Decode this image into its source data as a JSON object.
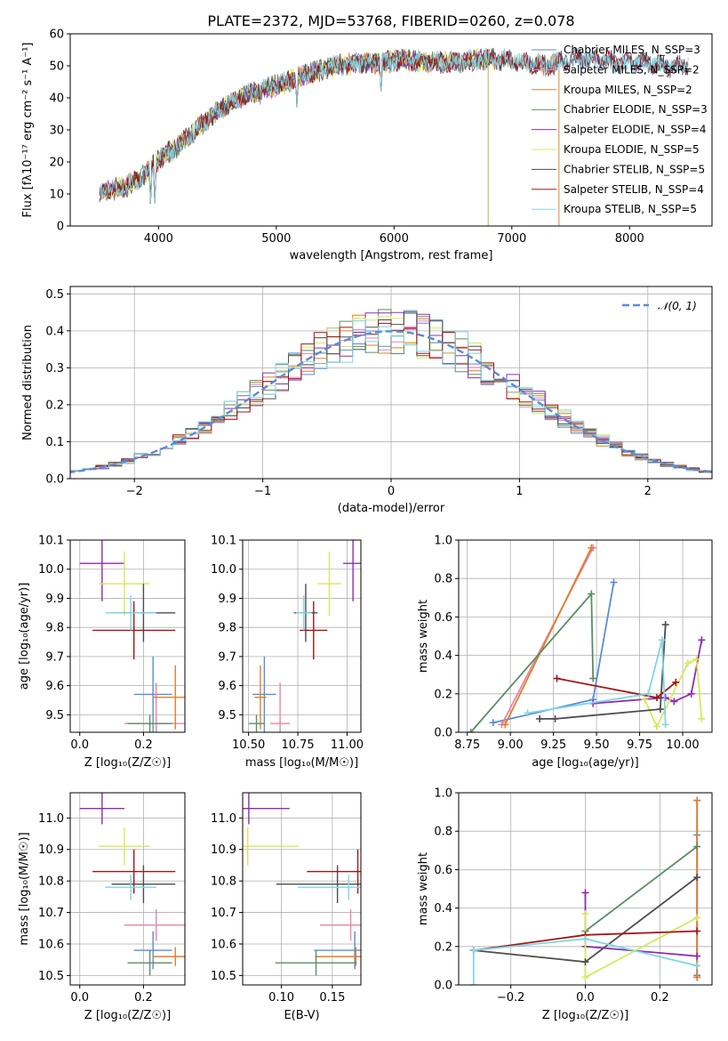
{
  "colors": {
    "Chabrier MILES": "#5b8bd9",
    "Salpeter MILES": "#e885a8",
    "Kroupa MILES": "#df7f2a",
    "Chabrier ELODIE": "#5a8e63",
    "Salpeter ELODIE": "#8f2cb1",
    "Kroupa ELODIE": "#d6e85c",
    "Chabrier STELIB": "#4d4d4d",
    "Salpeter STELIB": "#a51414",
    "Kroupa STELIB": "#7fd6e6"
  },
  "chart_data": [
    {
      "id": "spectrum",
      "type": "line",
      "title": "PLATE=2372, MJD=53768, FIBERID=0260, z=0.078",
      "xlabel": "wavelength [Angstrom, rest frame]",
      "ylabel": "Flux [fλ10⁻¹⁷ erg cm⁻² s⁻¹ A⁻¹]",
      "xlim": [
        3250,
        8700
      ],
      "ylim": [
        0,
        60
      ],
      "xticks": [
        4000,
        5000,
        6000,
        7000,
        8000
      ],
      "yticks": [
        0,
        10,
        20,
        30,
        40,
        50,
        60
      ],
      "grid": false,
      "legend_position": "right",
      "continuum": {
        "x": [
          3500,
          3700,
          3850,
          3950,
          4050,
          4200,
          4350,
          4500,
          4700,
          4900,
          5100,
          5300,
          5500,
          5700,
          5900,
          6100,
          6300,
          6500,
          6700,
          6900,
          7100,
          7300,
          7500,
          7700,
          7900,
          8100,
          8300,
          8500
        ],
        "y": [
          11,
          12,
          15,
          19,
          22,
          26,
          31,
          36,
          40,
          43,
          45,
          48,
          50,
          51,
          51,
          52,
          51,
          51,
          52,
          52,
          51,
          50,
          52,
          52,
          51,
          51,
          50,
          50
        ]
      },
      "absorption_features": [
        {
          "x": 3933,
          "y": 6
        },
        {
          "x": 3968,
          "y": 7
        },
        {
          "x": 4300,
          "y": 24
        },
        {
          "x": 4861,
          "y": 37
        },
        {
          "x": 5175,
          "y": 36
        },
        {
          "x": 5890,
          "y": 40
        },
        {
          "x": 6563,
          "y": 45
        }
      ],
      "series": [
        {
          "name": "Chabrier MILES",
          "nssp": 3,
          "xmax": 8500
        },
        {
          "name": "Salpeter MILES",
          "nssp": 2,
          "xmax": 7400
        },
        {
          "name": "Kroupa MILES",
          "nssp": 2,
          "xmax": 7400
        },
        {
          "name": "Chabrier ELODIE",
          "nssp": 3,
          "xmax": 6800
        },
        {
          "name": "Salpeter ELODIE",
          "nssp": 4,
          "xmax": 6800
        },
        {
          "name": "Kroupa ELODIE",
          "nssp": 5,
          "xmax": 6800
        },
        {
          "name": "Chabrier STELIB",
          "nssp": 5,
          "xmax": 8500
        },
        {
          "name": "Salpeter STELIB",
          "nssp": 4,
          "xmax": 8500
        },
        {
          "name": "Kroupa STELIB",
          "nssp": 5,
          "xmax": 8500
        }
      ],
      "legend_entries": [
        "Chabrier MILES, N_SSP=3",
        "Salpeter MILES, N_SSP=2",
        "Kroupa MILES, N_SSP=2",
        "Chabrier ELODIE, N_SSP=3",
        "Salpeter ELODIE, N_SSP=4",
        "Kroupa ELODIE, N_SSP=5",
        "Chabrier STELIB, N_SSP=5",
        "Salpeter STELIB, N_SSP=4",
        "Kroupa STELIB, N_SSP=5"
      ]
    },
    {
      "id": "residuals",
      "type": "bar",
      "xlabel": "(data-model)/error",
      "ylabel": "Normed distribution",
      "xlim": [
        -2.5,
        2.5
      ],
      "ylim": [
        0,
        0.52
      ],
      "xticks": [
        -2,
        -1,
        0,
        1,
        2
      ],
      "yticks": [
        0.0,
        0.1,
        0.2,
        0.3,
        0.4,
        0.5
      ],
      "grid": true,
      "legend_position": "upper right",
      "reference_label": "𝒩(0, 1)",
      "reference_color": "#5b8bd9",
      "bin_width": 0.1,
      "histogram_approximates": "N(0,1) per model"
    },
    {
      "id": "age_vs_Z",
      "type": "scatter",
      "xlabel": "Z [log₁₀(Z/Z☉)]",
      "ylabel": "age  [log₁₀(age/yr)]",
      "xlim": [
        -0.03,
        0.33
      ],
      "ylim": [
        9.44,
        10.1
      ],
      "xticks": [
        0.0,
        0.2
      ],
      "yticks": [
        9.5,
        9.6,
        9.7,
        9.8,
        9.9,
        10.0,
        10.1
      ],
      "grid": true
    },
    {
      "id": "age_vs_mass",
      "type": "scatter",
      "xlabel": "mass [log₁₀(M/M☉)]",
      "xlim": [
        10.47,
        11.07
      ],
      "ylim": [
        9.44,
        10.1
      ],
      "xticks": [
        10.5,
        10.75,
        11.0
      ],
      "yticks": [
        9.5,
        9.6,
        9.7,
        9.8,
        9.9,
        10.0,
        10.1
      ],
      "grid": true
    },
    {
      "id": "mass_weight_vs_age",
      "type": "line",
      "xlabel": "age  [log₁₀(age/yr)]",
      "ylabel": "mass weight",
      "xlim": [
        8.7,
        10.17
      ],
      "ylim": [
        0,
        1.0
      ],
      "xticks": [
        8.75,
        9.0,
        9.25,
        9.5,
        9.75,
        10.0
      ],
      "yticks": [
        0.0,
        0.2,
        0.4,
        0.6,
        0.8,
        1.0
      ],
      "grid": true,
      "series": [
        {
          "name": "Chabrier MILES",
          "x": [
            8.9,
            9.48,
            9.6
          ],
          "y": [
            0.05,
            0.17,
            0.78
          ]
        },
        {
          "name": "Salpeter MILES",
          "x": [
            8.95,
            9.48
          ],
          "y": [
            0.04,
            0.96
          ]
        },
        {
          "name": "Kroupa MILES",
          "x": [
            8.97,
            9.47
          ],
          "y": [
            0.04,
            0.96
          ]
        },
        {
          "name": "Chabrier ELODIE",
          "x": [
            8.77,
            9.47,
            9.48
          ],
          "y": [
            0.0,
            0.72,
            0.28
          ]
        },
        {
          "name": "Salpeter ELODIE",
          "x": [
            9.48,
            9.9,
            9.95,
            10.05,
            10.11
          ],
          "y": [
            0.15,
            0.18,
            0.16,
            0.2,
            0.48
          ]
        },
        {
          "name": "Kroupa ELODIE",
          "x": [
            9.78,
            9.85,
            10.03,
            10.08,
            10.11
          ],
          "y": [
            0.17,
            0.03,
            0.36,
            0.38,
            0.07
          ]
        },
        {
          "name": "Chabrier STELIB",
          "x": [
            9.17,
            9.26,
            9.87,
            9.9
          ],
          "y": [
            0.07,
            0.07,
            0.12,
            0.56
          ]
        },
        {
          "name": "Salpeter STELIB",
          "x": [
            9.27,
            9.85,
            9.96
          ],
          "y": [
            0.28,
            0.18,
            0.26
          ]
        },
        {
          "name": "Kroupa STELIB",
          "x": [
            9.1,
            9.8,
            9.88,
            9.9
          ],
          "y": [
            0.1,
            0.2,
            0.48,
            0.04
          ]
        }
      ]
    },
    {
      "id": "mass_vs_Z",
      "type": "scatter",
      "xlabel": "Z [log₁₀(Z/Z☉)]",
      "ylabel": "mass [log₁₀(M/M☉)]",
      "xlim": [
        -0.03,
        0.33
      ],
      "ylim": [
        10.47,
        11.08
      ],
      "xticks": [
        0.0,
        0.2
      ],
      "yticks": [
        10.5,
        10.6,
        10.7,
        10.8,
        10.9,
        11.0
      ],
      "grid": true
    },
    {
      "id": "mass_vs_EBV",
      "type": "scatter",
      "xlabel": "E(B-V)",
      "xlim": [
        0.062,
        0.178
      ],
      "ylim": [
        10.47,
        11.08
      ],
      "xticks": [
        0.1,
        0.15
      ],
      "yticks": [
        10.5,
        10.6,
        10.7,
        10.8,
        10.9,
        11.0
      ],
      "grid": true
    },
    {
      "id": "mass_weight_vs_Z",
      "type": "line",
      "xlabel": "Z [log₁₀(Z/Z☉)]",
      "ylabel": "mass weight",
      "xlim": [
        -0.34,
        0.34
      ],
      "ylim": [
        0,
        1.0
      ],
      "xticks": [
        -0.2,
        0.0,
        0.2
      ],
      "yticks": [
        0.0,
        0.2,
        0.4,
        0.6,
        0.8,
        1.0
      ],
      "grid": true,
      "series": [
        {
          "name": "Chabrier MILES",
          "x": [
            0.3,
            0.3
          ],
          "y": [
            0.78,
            0.05
          ]
        },
        {
          "name": "Salpeter MILES",
          "x": [
            0.3,
            0.3
          ],
          "y": [
            0.96,
            0.04
          ]
        },
        {
          "name": "Kroupa MILES",
          "x": [
            0.3,
            0.3
          ],
          "y": [
            0.96,
            0.04
          ]
        },
        {
          "name": "Chabrier ELODIE",
          "x": [
            0.0,
            0.3
          ],
          "y": [
            0.28,
            0.72
          ]
        },
        {
          "name": "Salpeter ELODIE",
          "x": [
            0.0,
            0.0,
            0.3
          ],
          "y": [
            0.48,
            0.2,
            0.15
          ]
        },
        {
          "name": "Kroupa ELODIE",
          "x": [
            0.0,
            0.0,
            0.3
          ],
          "y": [
            0.37,
            0.04,
            0.35
          ]
        },
        {
          "name": "Chabrier STELIB",
          "x": [
            -0.3,
            0.0,
            0.3
          ],
          "y": [
            0.18,
            0.12,
            0.56
          ]
        },
        {
          "name": "Salpeter STELIB",
          "x": [
            -0.3,
            0.0,
            0.3
          ],
          "y": [
            0.18,
            0.26,
            0.28
          ]
        },
        {
          "name": "Kroupa STELIB",
          "x": [
            -0.3,
            -0.3,
            0.0,
            0.3
          ],
          "y": [
            0.0,
            0.18,
            0.24,
            0.1
          ]
        }
      ]
    }
  ],
  "points": [
    {
      "name": "Chabrier MILES",
      "Z": 0.23,
      "dZ": 0.06,
      "age": 9.57,
      "dage": 0.13,
      "mass": 10.58,
      "dmass": 0.06,
      "ebv": 0.172,
      "debv": 0.04
    },
    {
      "name": "Salpeter MILES",
      "Z": 0.24,
      "dZ": 0.1,
      "age": 9.47,
      "dage": 0.14,
      "mass": 10.66,
      "dmass": 0.05,
      "ebv": 0.168,
      "debv": 0.03
    },
    {
      "name": "Kroupa MILES",
      "Z": 0.3,
      "dZ": 0.07,
      "age": 9.56,
      "dage": 0.11,
      "mass": 10.56,
      "dmass": 0.03,
      "ebv": 0.173,
      "debv": 0.04
    },
    {
      "name": "Chabrier ELODIE",
      "Z": 0.22,
      "dZ": 0.07,
      "age": 9.47,
      "dage": 0.03,
      "mass": 10.54,
      "dmass": 0.04,
      "ebv": 0.134,
      "debv": 0.04
    },
    {
      "name": "Salpeter ELODIE",
      "Z": 0.07,
      "dZ": 0.07,
      "age": 10.02,
      "dage": 0.13,
      "mass": 11.03,
      "dmass": 0.05,
      "ebv": 0.068,
      "debv": 0.04
    },
    {
      "name": "Kroupa ELODIE",
      "Z": 0.14,
      "dZ": 0.08,
      "age": 9.95,
      "dage": 0.11,
      "mass": 10.91,
      "dmass": 0.06,
      "ebv": 0.067,
      "debv": 0.05
    },
    {
      "name": "Chabrier STELIB",
      "Z": 0.2,
      "dZ": 0.1,
      "age": 9.85,
      "dage": 0.1,
      "mass": 10.79,
      "dmass": 0.06,
      "ebv": 0.155,
      "debv": 0.06
    },
    {
      "name": "Salpeter STELIB",
      "Z": 0.17,
      "dZ": 0.13,
      "age": 9.79,
      "dage": 0.1,
      "mass": 10.83,
      "dmass": 0.07,
      "ebv": 0.175,
      "debv": 0.05
    },
    {
      "name": "Kroupa STELIB",
      "Z": 0.16,
      "dZ": 0.08,
      "age": 9.85,
      "dage": 0.06,
      "mass": 10.78,
      "dmass": 0.04,
      "ebv": 0.166,
      "debv": 0.05
    }
  ]
}
